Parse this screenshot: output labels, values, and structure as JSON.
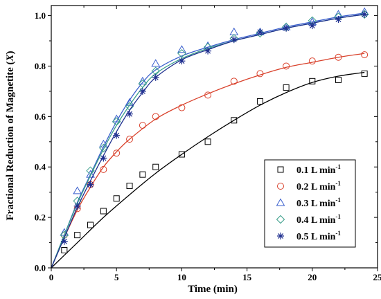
{
  "chart_data": {
    "type": "scatter",
    "xlabel": "Time (min)",
    "ylabel": "Fractional Reduction of Magnetite (X)",
    "ylabel_main": "Fractional Reduction of Magnetite (",
    "ylabel_var": "X",
    "ylabel_close": ")",
    "xlim": [
      0,
      25
    ],
    "ylim": [
      0,
      1.04
    ],
    "xticks": [
      "0",
      "5",
      "10",
      "15",
      "20",
      "25"
    ],
    "yticks": [
      "0.0",
      "0.2",
      "0.4",
      "0.6",
      "0.8",
      "1.0"
    ],
    "xtick_values": [
      0,
      5,
      10,
      15,
      20,
      25
    ],
    "ytick_values": [
      0,
      0.2,
      0.4,
      0.6,
      0.8,
      1.0
    ],
    "grid": false,
    "legend_position": "bottom-right",
    "series": [
      {
        "name": "0.1 L min-1",
        "name_main": "0.1 L min",
        "name_sup": "-1",
        "marker": "square",
        "color": "#000000",
        "points": [
          [
            1,
            0.07
          ],
          [
            2,
            0.13
          ],
          [
            3,
            0.17
          ],
          [
            4,
            0.225
          ],
          [
            5,
            0.275
          ],
          [
            6,
            0.325
          ],
          [
            7,
            0.37
          ],
          [
            8,
            0.4
          ],
          [
            10,
            0.45
          ],
          [
            12,
            0.5
          ],
          [
            14,
            0.585
          ],
          [
            16,
            0.66
          ],
          [
            18,
            0.715
          ],
          [
            20,
            0.74
          ],
          [
            22,
            0.745
          ],
          [
            24,
            0.77
          ]
        ],
        "fit": [
          [
            0,
            0
          ],
          [
            2,
            0.1
          ],
          [
            4,
            0.2
          ],
          [
            6,
            0.29
          ],
          [
            8,
            0.375
          ],
          [
            10,
            0.45
          ],
          [
            12,
            0.52
          ],
          [
            14,
            0.585
          ],
          [
            16,
            0.645
          ],
          [
            18,
            0.695
          ],
          [
            20,
            0.735
          ],
          [
            22,
            0.76
          ],
          [
            24,
            0.775
          ]
        ]
      },
      {
        "name": "0.2 L min-1",
        "name_main": "0.2 L min",
        "name_sup": "-1",
        "marker": "circle",
        "color": "#d9412b",
        "points": [
          [
            1,
            0.13
          ],
          [
            2,
            0.235
          ],
          [
            3,
            0.33
          ],
          [
            4,
            0.39
          ],
          [
            5,
            0.455
          ],
          [
            6,
            0.51
          ],
          [
            7,
            0.565
          ],
          [
            8,
            0.6
          ],
          [
            10,
            0.635
          ],
          [
            12,
            0.685
          ],
          [
            14,
            0.74
          ],
          [
            16,
            0.77
          ],
          [
            18,
            0.8
          ],
          [
            20,
            0.82
          ],
          [
            22,
            0.835
          ],
          [
            24,
            0.845
          ]
        ],
        "fit": [
          [
            0,
            0
          ],
          [
            1,
            0.12
          ],
          [
            2,
            0.23
          ],
          [
            3,
            0.32
          ],
          [
            4,
            0.4
          ],
          [
            5,
            0.46
          ],
          [
            6,
            0.51
          ],
          [
            8,
            0.59
          ],
          [
            10,
            0.645
          ],
          [
            12,
            0.69
          ],
          [
            14,
            0.73
          ],
          [
            16,
            0.765
          ],
          [
            18,
            0.795
          ],
          [
            20,
            0.815
          ],
          [
            22,
            0.835
          ],
          [
            24,
            0.85
          ]
        ]
      },
      {
        "name": "0.3 L min-1",
        "name_main": "0.3 L min",
        "name_sup": "-1",
        "marker": "triangle",
        "color": "#3a5fcd",
        "points": [
          [
            1,
            0.14
          ],
          [
            2,
            0.305
          ],
          [
            3,
            0.37
          ],
          [
            4,
            0.49
          ],
          [
            5,
            0.59
          ],
          [
            6,
            0.655
          ],
          [
            7,
            0.74
          ],
          [
            8,
            0.81
          ],
          [
            10,
            0.865
          ],
          [
            12,
            0.88
          ],
          [
            14,
            0.935
          ],
          [
            16,
            0.935
          ],
          [
            18,
            0.955
          ],
          [
            20,
            0.975
          ],
          [
            22,
            1.005
          ],
          [
            24,
            1.015
          ]
        ],
        "fit": [
          [
            0,
            0
          ],
          [
            1,
            0.13
          ],
          [
            2,
            0.26
          ],
          [
            3,
            0.37
          ],
          [
            4,
            0.48
          ],
          [
            5,
            0.58
          ],
          [
            6,
            0.665
          ],
          [
            7,
            0.735
          ],
          [
            8,
            0.785
          ],
          [
            10,
            0.84
          ],
          [
            12,
            0.875
          ],
          [
            14,
            0.905
          ],
          [
            16,
            0.93
          ],
          [
            18,
            0.955
          ],
          [
            20,
            0.975
          ],
          [
            22,
            0.995
          ],
          [
            24,
            1.01
          ]
        ]
      },
      {
        "name": "0.4 L min-1",
        "name_main": "0.4 L min",
        "name_sup": "-1",
        "marker": "diamond",
        "color": "#3a9e8a",
        "points": [
          [
            1,
            0.13
          ],
          [
            2,
            0.265
          ],
          [
            3,
            0.385
          ],
          [
            4,
            0.475
          ],
          [
            5,
            0.58
          ],
          [
            6,
            0.64
          ],
          [
            7,
            0.73
          ],
          [
            8,
            0.78
          ],
          [
            10,
            0.85
          ],
          [
            12,
            0.875
          ],
          [
            14,
            0.91
          ],
          [
            16,
            0.93
          ],
          [
            18,
            0.955
          ],
          [
            20,
            0.98
          ],
          [
            22,
            0.995
          ],
          [
            24,
            1.005
          ]
        ],
        "fit": [
          [
            0,
            0
          ],
          [
            1,
            0.13
          ],
          [
            2,
            0.255
          ],
          [
            3,
            0.365
          ],
          [
            4,
            0.47
          ],
          [
            5,
            0.565
          ],
          [
            6,
            0.645
          ],
          [
            7,
            0.715
          ],
          [
            8,
            0.77
          ],
          [
            10,
            0.83
          ],
          [
            12,
            0.87
          ],
          [
            14,
            0.9
          ],
          [
            16,
            0.925
          ],
          [
            18,
            0.95
          ],
          [
            20,
            0.97
          ],
          [
            22,
            0.99
          ],
          [
            24,
            1.005
          ]
        ]
      },
      {
        "name": "0.5 L min-1",
        "name_main": "0.5 L min",
        "name_sup": "-1",
        "marker": "star",
        "color": "#1f2f8f",
        "points": [
          [
            1,
            0.105
          ],
          [
            2,
            0.245
          ],
          [
            3,
            0.33
          ],
          [
            4,
            0.435
          ],
          [
            5,
            0.525
          ],
          [
            6,
            0.61
          ],
          [
            7,
            0.7
          ],
          [
            8,
            0.755
          ],
          [
            10,
            0.82
          ],
          [
            12,
            0.86
          ],
          [
            14,
            0.905
          ],
          [
            16,
            0.935
          ],
          [
            18,
            0.95
          ],
          [
            20,
            0.96
          ],
          [
            22,
            0.985
          ],
          [
            24,
            1.005
          ]
        ],
        "fit": [
          [
            0,
            0
          ],
          [
            1,
            0.12
          ],
          [
            2,
            0.24
          ],
          [
            3,
            0.345
          ],
          [
            4,
            0.445
          ],
          [
            5,
            0.54
          ],
          [
            6,
            0.625
          ],
          [
            7,
            0.695
          ],
          [
            8,
            0.755
          ],
          [
            10,
            0.825
          ],
          [
            12,
            0.865
          ],
          [
            14,
            0.9
          ],
          [
            16,
            0.925
          ],
          [
            18,
            0.95
          ],
          [
            20,
            0.97
          ],
          [
            22,
            0.99
          ],
          [
            24,
            1.005
          ]
        ]
      }
    ]
  }
}
